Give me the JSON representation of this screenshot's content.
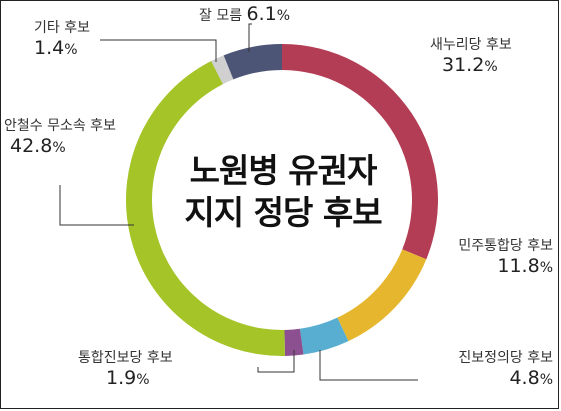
{
  "chart_data": {
    "type": "pie",
    "style": "donut",
    "title_lines": [
      "노원병 유권자",
      "지지 정당 후보"
    ],
    "unit": "%",
    "slices": [
      {
        "label": "새누리당 후보",
        "value": 31.2,
        "color": "#b33d54"
      },
      {
        "label": "민주통합당 후보",
        "value": 11.8,
        "color": "#e6b72e"
      },
      {
        "label": "진보정의당 후보",
        "value": 4.8,
        "color": "#58aed1"
      },
      {
        "label": "통합진보당 후보",
        "value": 1.9,
        "color": "#8c4f8f"
      },
      {
        "label": "안철수 무소속 후보",
        "value": 42.8,
        "color": "#a5c428"
      },
      {
        "label": "기타 후보",
        "value": 1.4,
        "color": "#d0d0d0"
      },
      {
        "label": "잘 모름",
        "value": 6.1,
        "color": "#4d5577"
      }
    ]
  }
}
